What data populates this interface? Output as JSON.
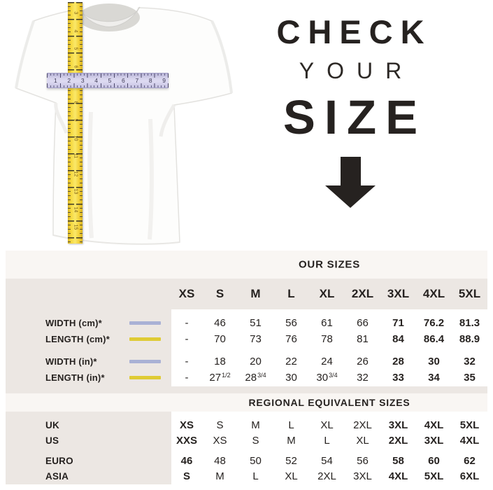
{
  "colors": {
    "text": "#262220",
    "table_bg": "#ECE7E3",
    "band_bg": "#F9F6F3",
    "panel_bg": "#FFFFFF",
    "width_line": "#A9B1D5",
    "length_line": "#DFCB35",
    "tape_yellow": "#F5D838",
    "tape_lavender": "#D6D3EC"
  },
  "icons": {
    "down_arrow": "down-arrow",
    "vertical_tape": "yellow-measuring-tape",
    "horizontal_tape": "lavender-measuring-tape",
    "width_swatch": "lavender-line",
    "length_swatch": "yellow-line"
  },
  "hero": {
    "headline_line1": "CHECK",
    "headline_line2": "YOUR",
    "headline_line3": "SIZE",
    "vertical_tape_numbers": [
      "3",
      "4",
      "5",
      "6",
      "7",
      "8",
      "9",
      "10",
      "11",
      "12",
      "13",
      "14",
      "15"
    ],
    "horizontal_tape_numbers": [
      "1",
      "2",
      "3",
      "4",
      "5",
      "6",
      "7",
      "8",
      "9"
    ]
  },
  "size_table": {
    "our_sizes_title": "OUR SIZES",
    "regional_title": "REGIONAL EQUIVALENT SIZES",
    "columns": [
      "XS",
      "S",
      "M",
      "L",
      "XL",
      "2XL",
      "3XL",
      "4XL",
      "5XL"
    ],
    "measure_rows": [
      {
        "label": "WIDTH (cm)*",
        "swatch": "lavender",
        "group": "cm",
        "values": [
          "-",
          "46",
          "51",
          "56",
          "61",
          "66",
          "71",
          "76.2",
          "81.3"
        ],
        "bold_indices": [
          6,
          7,
          8
        ]
      },
      {
        "label": "LENGTH (cm)*",
        "swatch": "yellow",
        "group": "cm",
        "values": [
          "-",
          "70",
          "73",
          "76",
          "78",
          "81",
          "84",
          "86.4",
          "88.9"
        ],
        "bold_indices": [
          6,
          7,
          8
        ]
      },
      {
        "label": "WIDTH (in)*",
        "swatch": "lavender",
        "group": "in",
        "values": [
          "-",
          "18",
          "20",
          "22",
          "24",
          "26",
          "28",
          "30",
          "32"
        ],
        "bold_indices": [
          6,
          7,
          8
        ]
      },
      {
        "label": "LENGTH (in)*",
        "swatch": "yellow",
        "group": "in",
        "values": [
          "-",
          {
            "t": "27",
            "sup": "1/2"
          },
          {
            "t": "28",
            "sup": "3/4"
          },
          "30",
          {
            "t": "30",
            "sup": "3/4"
          },
          "32",
          "33",
          "34",
          "35"
        ],
        "bold_indices": [
          6,
          7,
          8
        ]
      }
    ],
    "regional_rows": [
      {
        "label": "UK",
        "values": [
          "XS",
          "S",
          "M",
          "L",
          "XL",
          "2XL",
          "3XL",
          "4XL",
          "5XL"
        ],
        "bold_indices": [
          0,
          6,
          7,
          8
        ]
      },
      {
        "label": "US",
        "values": [
          "XXS",
          "XS",
          "S",
          "M",
          "L",
          "XL",
          "2XL",
          "3XL",
          "4XL"
        ],
        "bold_indices": [
          0,
          6,
          7,
          8
        ]
      },
      {
        "label": "EURO",
        "values": [
          "46",
          "48",
          "50",
          "52",
          "54",
          "56",
          "58",
          "60",
          "62"
        ],
        "bold_indices": [
          0,
          6,
          7,
          8
        ]
      },
      {
        "label": "ASIA",
        "values": [
          "S",
          "M",
          "L",
          "XL",
          "2XL",
          "3XL",
          "4XL",
          "5XL",
          "6XL"
        ],
        "bold_indices": [
          0,
          6,
          7,
          8
        ]
      }
    ]
  }
}
